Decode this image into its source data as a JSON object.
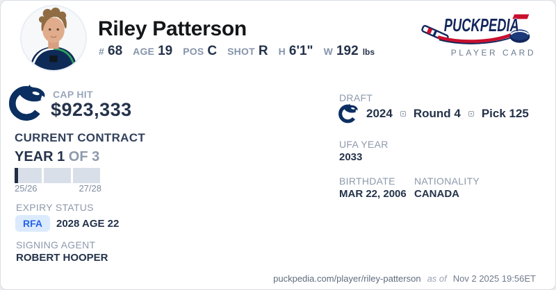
{
  "header": {
    "name": "Riley Patterson",
    "stats": [
      {
        "label": "#",
        "value": "68"
      },
      {
        "label": "AGE",
        "value": "19"
      },
      {
        "label": "POS",
        "value": "C"
      },
      {
        "label": "SHOT",
        "value": "R"
      },
      {
        "label": "H",
        "value": "6'1\""
      },
      {
        "label": "W",
        "value": "192",
        "unit": "lbs"
      }
    ],
    "brand": {
      "logo_text": "PUCKPEDIA",
      "subtitle": "PLAYER CARD"
    }
  },
  "left": {
    "cap_hit_label": "CAP HIT",
    "cap_hit_value": "$923,333",
    "contract_heading": "CURRENT CONTRACT",
    "year_current": "YEAR 1",
    "year_of": " OF 3",
    "progress": {
      "segments": 3,
      "fill_pct": 4,
      "start_label": "25/26",
      "end_label": "27/28"
    },
    "expiry_label": "EXPIRY STATUS",
    "expiry_badge": "RFA",
    "expiry_value": "2028 AGE 22",
    "agent_label": "SIGNING AGENT",
    "agent_value": "ROBERT HOOPER"
  },
  "right": {
    "draft_label": "DRAFT",
    "draft_year": "2024",
    "draft_round": "Round 4",
    "draft_pick": "Pick 125",
    "ufa_label": "UFA YEAR",
    "ufa_value": "2033",
    "birthdate_label": "BIRTHDATE",
    "birthdate_value": "MAR 22, 2006",
    "nationality_label": "NATIONALITY",
    "nationality_value": "CANADA"
  },
  "footer": {
    "url": "puckpedia.com/player/riley-patterson",
    "as_of_label": "as of",
    "timestamp": "Nov 2 2025 19:56ET"
  },
  "icons": {
    "team_logo": "canucks-orca-logo",
    "brand_logo": "puckpedia-logo"
  },
  "colors": {
    "brand_navy": "#13265c",
    "brand_red": "#c8102e",
    "dark_text": "#24324a",
    "label_text": "#8d99ab",
    "badge_bg": "#dbeafe",
    "badge_text": "#2563eb",
    "progress_segment": "#d9dfe8",
    "progress_fill": "#222f43"
  }
}
